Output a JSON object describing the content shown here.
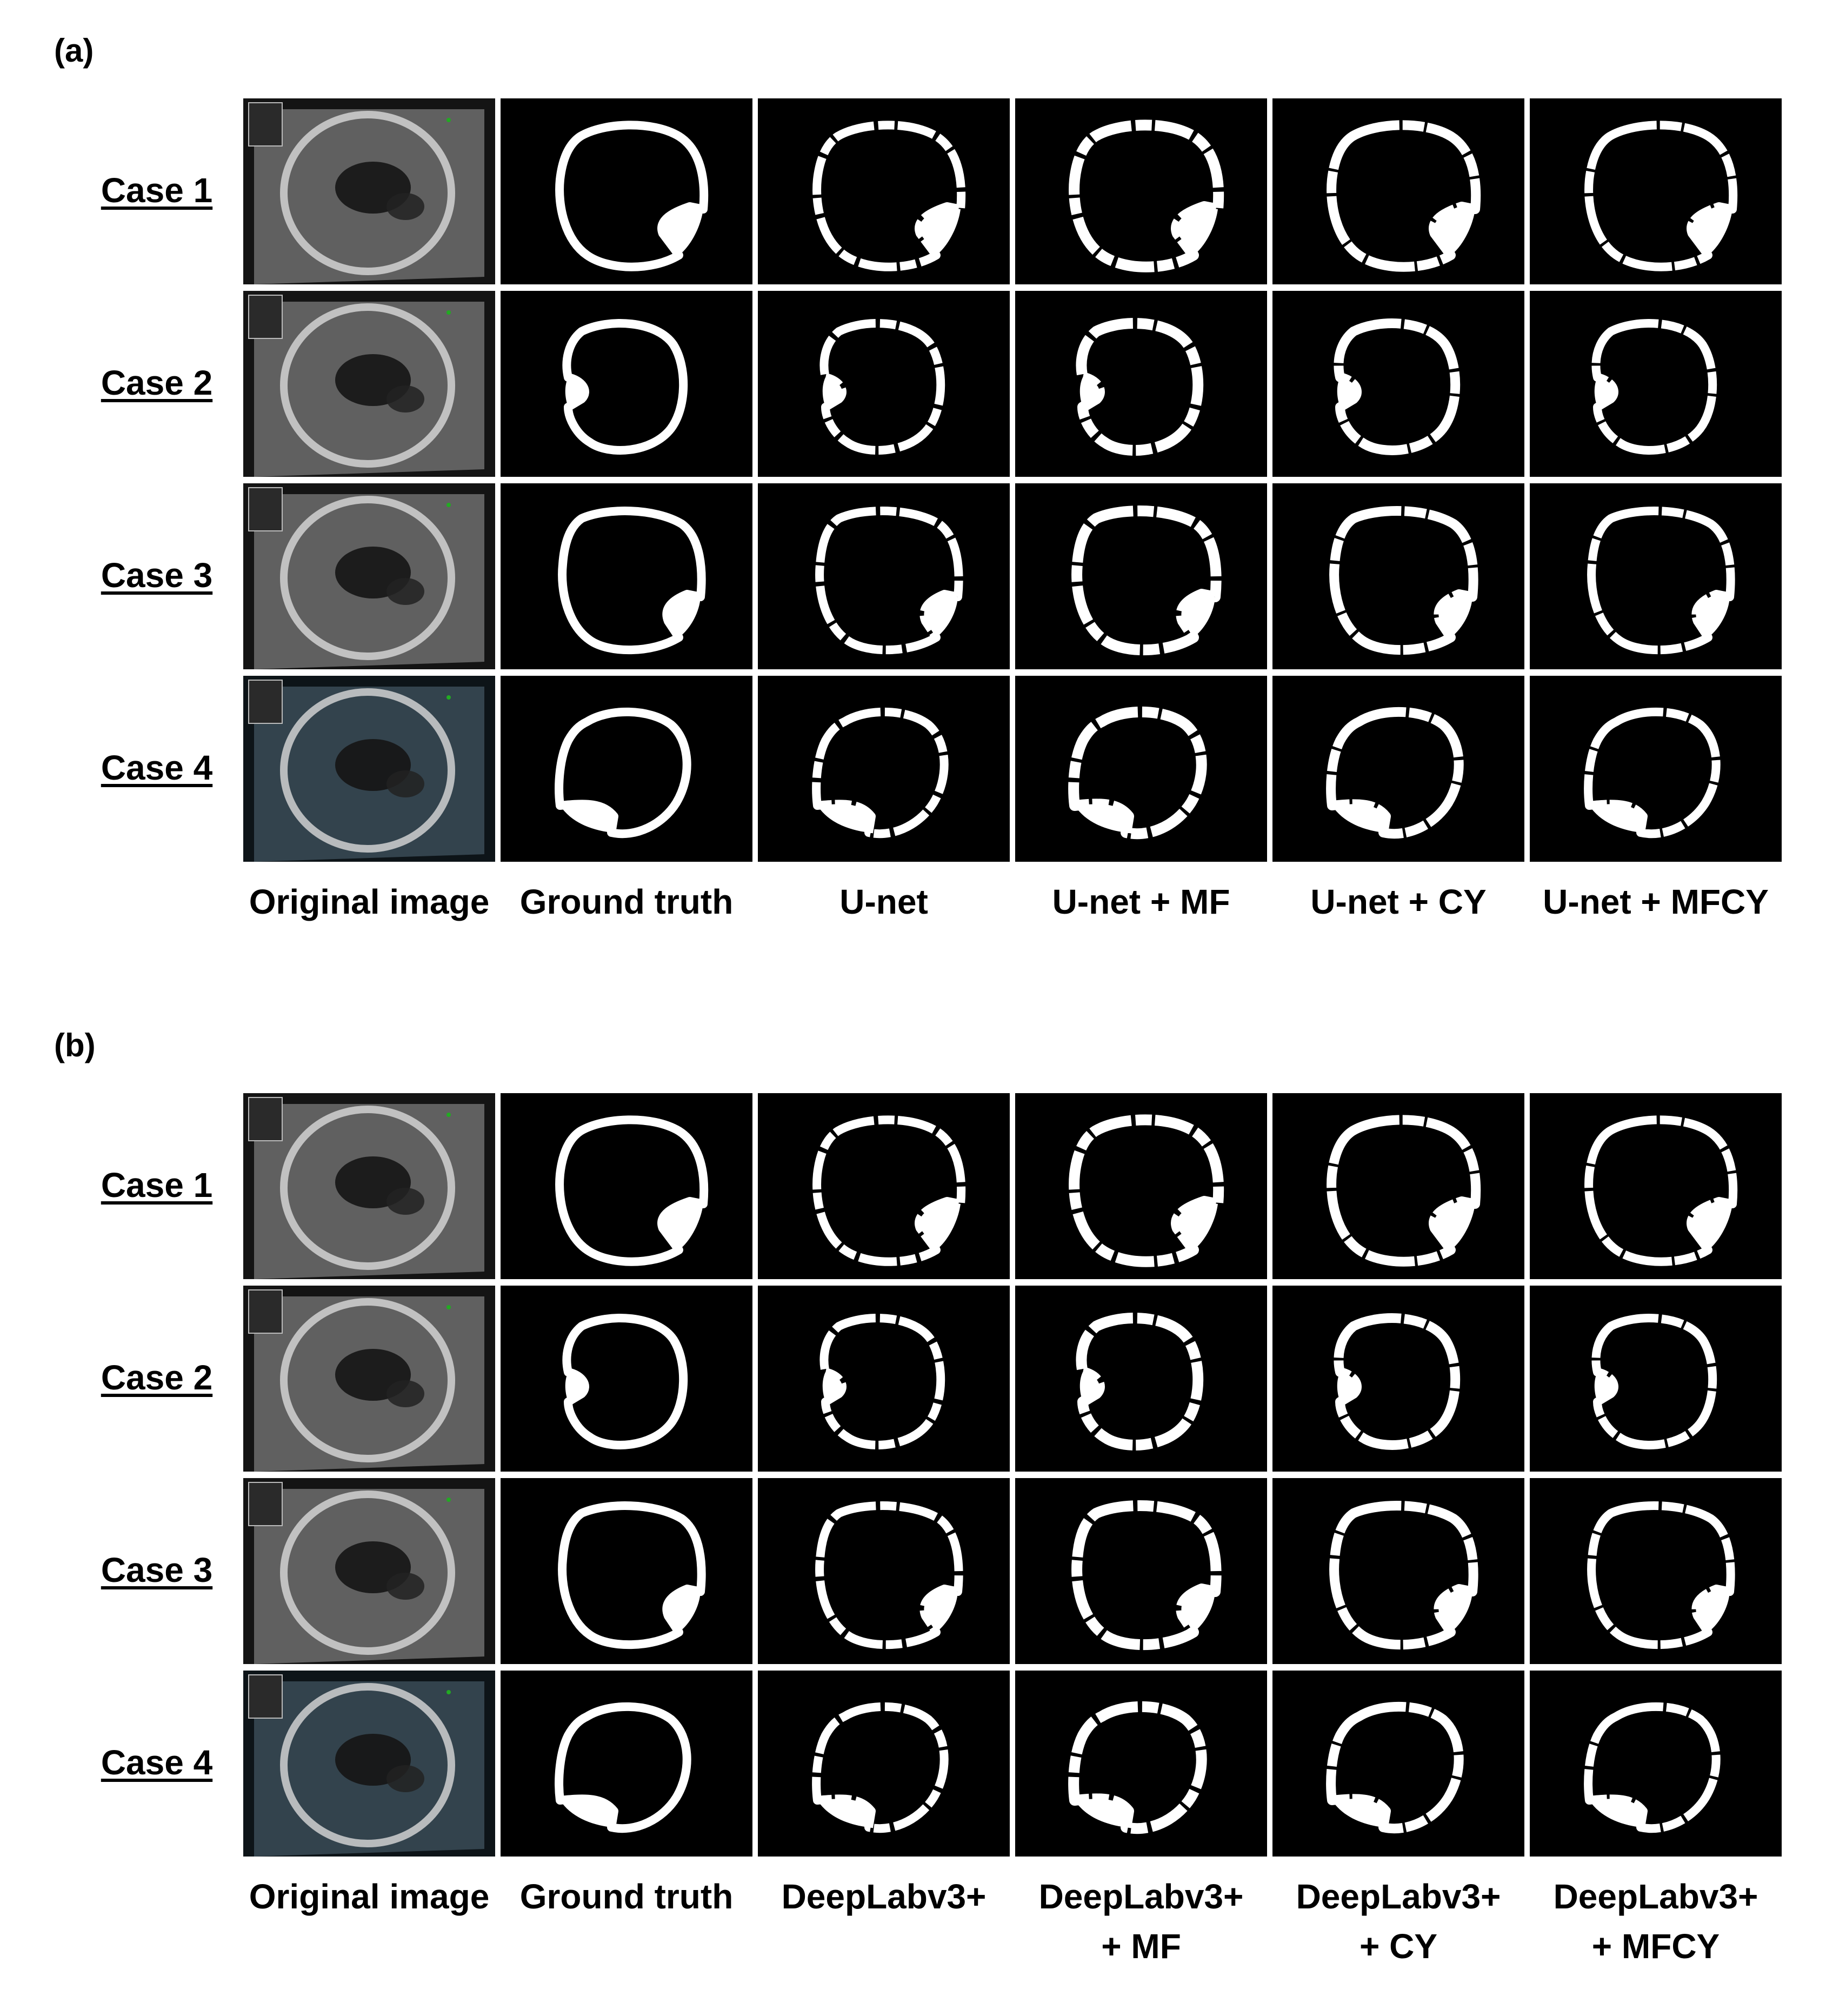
{
  "panels": [
    {
      "label": "(a)",
      "rows": [
        "Case 1",
        "Case 2",
        "Case 3",
        "Case 4"
      ],
      "columns": [
        {
          "line1": "Original image",
          "line2": ""
        },
        {
          "line1": "Ground truth",
          "line2": ""
        },
        {
          "line1": "U-net",
          "line2": ""
        },
        {
          "line1": "U-net + MF",
          "line2": ""
        },
        {
          "line1": "U-net + CY",
          "line2": ""
        },
        {
          "line1": "U-net + MFCY",
          "line2": ""
        }
      ]
    },
    {
      "label": "(b)",
      "rows": [
        "Case 1",
        "Case 2",
        "Case 3",
        "Case 4"
      ],
      "columns": [
        {
          "line1": "Original image",
          "line2": ""
        },
        {
          "line1": "Ground truth",
          "line2": ""
        },
        {
          "line1": "DeepLabv3+",
          "line2": ""
        },
        {
          "line1": "DeepLabv3+",
          "line2": "+ MF"
        },
        {
          "line1": "DeepLabv3+",
          "line2": "+ CY"
        },
        {
          "line1": "DeepLabv3+",
          "line2": "+ MFCY"
        }
      ]
    }
  ],
  "colors": {
    "mask_background": "#000000",
    "mask_foreground": "#ffffff",
    "ultrasound_background": "#1a1a1a"
  }
}
